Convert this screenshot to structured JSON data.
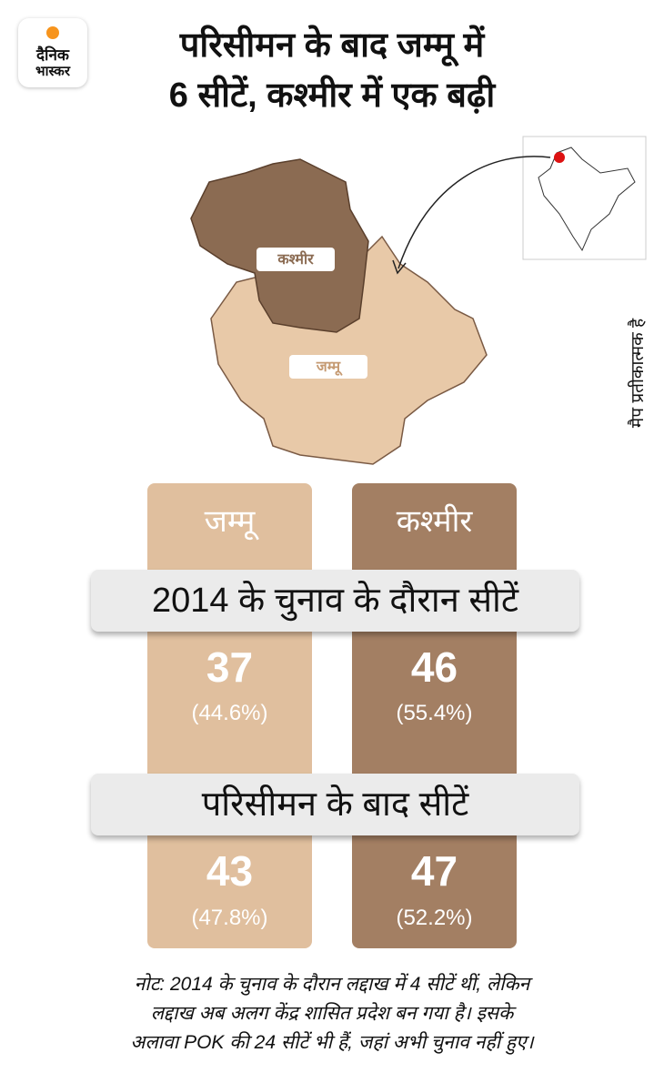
{
  "logo": {
    "line1": "दैनिक",
    "line2": "भास्कर"
  },
  "title": [
    "परिसीमन के बाद जम्मू में",
    "6 सीटें, कश्मीर में एक बढ़ी"
  ],
  "map": {
    "labels": [
      "कश्मीर",
      "जम्मू"
    ],
    "note": "मैप प्रतीकात्मक है"
  },
  "columns": [
    {
      "name": "जम्मू",
      "seats_2014": 37,
      "share_2014": "(44.6%)",
      "seats_after": 43,
      "share_after": "(47.8%)"
    },
    {
      "name": "कश्मीर",
      "seats_2014": 46,
      "share_2014": "(55.4%)",
      "seats_after": 47,
      "share_after": "(52.2%)"
    }
  ],
  "banners": [
    "2014 के चुनाव के दौरान सीटें",
    "परिसीमन के बाद सीटें"
  ],
  "note": [
    "नोट: 2014 के चुनाव के दौरान लद्दाख में 4 सीटें थीं, लेकिन",
    "लद्दाख अब अलग केंद्र शासित प्रदेश बन गया है। इसके",
    "अलावा POK की 24 सीटें भी हैं, जहां अभी चुनाव नहीं हुए।"
  ]
}
